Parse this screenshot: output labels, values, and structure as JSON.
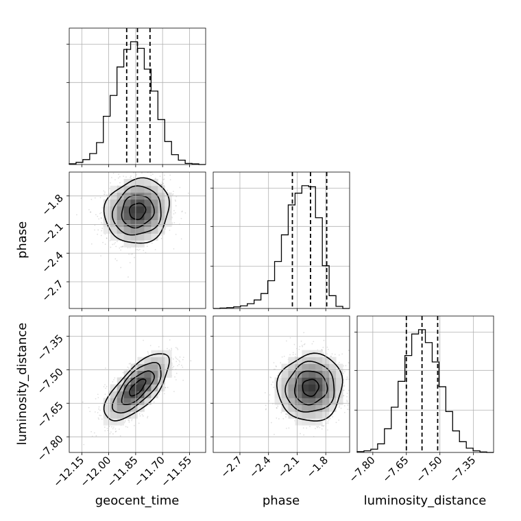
{
  "chart_data": {
    "type": "corner",
    "parameters": [
      "geocent_time",
      "phase",
      "luminosity_distance"
    ],
    "ranges": {
      "geocent_time": [
        -12.22,
        -11.46
      ],
      "phase": [
        -2.98,
        -1.55
      ],
      "luminosity_distance": [
        -7.87,
        -7.26
      ]
    },
    "ticks": {
      "geocent_time": [
        -12.15,
        -12.0,
        -11.85,
        -11.7,
        -11.55
      ],
      "phase": [
        -2.7,
        -2.4,
        -2.1,
        -1.8
      ],
      "luminosity_distance": [
        -7.8,
        -7.65,
        -7.5,
        -7.35
      ]
    },
    "tick_labels": {
      "geocent_time": [
        "−12.15",
        "−12.00",
        "−11.85",
        "−11.70",
        "−11.55"
      ],
      "phase": [
        "−2.7",
        "−2.4",
        "−2.1",
        "−1.8"
      ],
      "luminosity_distance": [
        "−7.80",
        "−7.65",
        "−7.50",
        "−7.35"
      ]
    },
    "axis_labels": {
      "geocent_time": "geocent_time",
      "phase": "phase",
      "luminosity_distance": "luminosity_distance"
    },
    "quantiles": {
      "geocent_time": [
        -11.9,
        -11.84,
        -11.77
      ],
      "phase": [
        -2.15,
        -1.96,
        -1.79
      ],
      "luminosity_distance": [
        -7.65,
        -7.58,
        -7.51
      ]
    },
    "histograms": {
      "geocent_time": {
        "edges": [
          -12.22,
          -12.182,
          -12.144,
          -12.106,
          -12.068,
          -12.03,
          -11.992,
          -11.954,
          -11.916,
          -11.878,
          -11.84,
          -11.802,
          -11.764,
          -11.726,
          -11.688,
          -11.65,
          -11.612,
          -11.574,
          -11.536,
          -11.498,
          -11.46
        ],
        "counts": [
          0.7,
          2,
          4.5,
          10,
          20,
          44,
          63,
          89,
          105,
          112,
          106,
          87,
          67,
          41,
          21,
          9,
          4,
          1,
          0.6,
          0
        ]
      },
      "phase": {
        "edges": [
          -2.98,
          -2.9085,
          -2.837,
          -2.7655,
          -2.694,
          -2.6225,
          -2.551,
          -2.4795,
          -2.408,
          -2.3365,
          -2.265,
          -2.1935,
          -2.122,
          -2.0505,
          -1.979,
          -1.9075,
          -1.836,
          -1.7645,
          -1.693,
          -1.6215,
          -1.55
        ],
        "counts": [
          0,
          0.4,
          0.8,
          1.5,
          2.5,
          4.5,
          8,
          14,
          26,
          44,
          69,
          97,
          108,
          115,
          114,
          85,
          40,
          12,
          2,
          0
        ]
      },
      "luminosity_distance": {
        "edges": [
          -7.87,
          -7.8395,
          -7.809,
          -7.7785,
          -7.748,
          -7.7175,
          -7.687,
          -7.6565,
          -7.626,
          -7.5955,
          -7.565,
          -7.5345,
          -7.504,
          -7.4735,
          -7.443,
          -7.4125,
          -7.382,
          -7.3515,
          -7.321,
          -7.2905,
          -7.26
        ],
        "counts": [
          0.8,
          1.5,
          3,
          8,
          22,
          42,
          66,
          90,
          110,
          114,
          102,
          84,
          61,
          38,
          20,
          10,
          4,
          1.5,
          0.5,
          0
        ]
      }
    },
    "pair_panels": [
      {
        "x": "geocent_time",
        "y": "phase",
        "mean": [
          -11.84,
          -1.96
        ],
        "sd": [
          0.09,
          0.17
        ],
        "rho": 0.1
      },
      {
        "x": "geocent_time",
        "y": "luminosity_distance",
        "mean": [
          -11.84,
          -7.58
        ],
        "sd": [
          0.09,
          0.075
        ],
        "rho": 0.7
      },
      {
        "x": "phase",
        "y": "luminosity_distance",
        "mean": [
          -1.96,
          -7.58
        ],
        "sd": [
          0.17,
          0.075
        ],
        "rho": 0.05
      }
    ],
    "contour_levels_sigma": [
      0.5,
      1.0,
      1.5,
      2.0
    ],
    "grid": true,
    "quantile_style": "dashed"
  }
}
